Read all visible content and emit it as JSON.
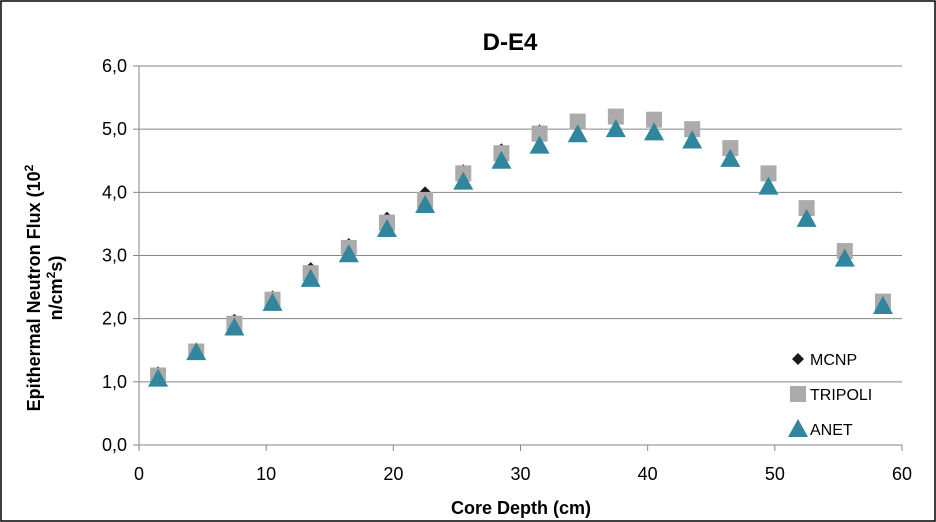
{
  "chart_data": {
    "type": "scatter",
    "title": "D-E4",
    "xlabel": "Core Depth (cm)",
    "ylabel_line1": "Epithermal Neutron Flux (10",
    "ylabel_sup1": "2",
    "ylabel_line2_a": "n/cm",
    "ylabel_sup2": "2",
    "ylabel_line2_b": "s)",
    "xlim": [
      0,
      60
    ],
    "ylim": [
      0,
      6
    ],
    "xticks": [
      0,
      10,
      20,
      30,
      40,
      50,
      60
    ],
    "yticks": [
      "0,0",
      "1,0",
      "2,0",
      "3,0",
      "4,0",
      "5,0",
      "6,0"
    ],
    "grid": "horizontal",
    "legend_position": "bottom-right",
    "x": [
      1.5,
      4.5,
      7.5,
      10.5,
      13.5,
      16.5,
      19.5,
      22.5,
      25.5,
      28.5,
      31.5,
      34.5,
      37.5,
      40.5,
      43.5,
      46.5,
      49.5,
      52.5,
      55.5,
      58.5
    ],
    "series": [
      {
        "name": "MCNP",
        "marker": "diamond",
        "color": "#1a1a1a",
        "values": [
          1.15,
          1.5,
          1.98,
          2.35,
          2.8,
          3.18,
          3.6,
          4.0,
          4.35,
          4.68,
          4.98,
          5.15,
          5.22,
          5.18,
          5.02,
          4.72,
          4.28,
          3.78,
          3.05,
          2.3
        ]
      },
      {
        "name": "TRIPOLI",
        "marker": "square",
        "color": "#ababab",
        "values": [
          1.1,
          1.48,
          1.92,
          2.3,
          2.72,
          3.12,
          3.52,
          3.88,
          4.3,
          4.62,
          4.93,
          5.12,
          5.2,
          5.15,
          5.0,
          4.7,
          4.3,
          3.75,
          3.07,
          2.27
        ]
      },
      {
        "name": "ANET",
        "marker": "triangle",
        "color": "#31859c",
        "values": [
          1.05,
          1.47,
          1.86,
          2.25,
          2.63,
          3.02,
          3.42,
          3.8,
          4.17,
          4.5,
          4.74,
          4.92,
          5.0,
          4.95,
          4.82,
          4.53,
          4.09,
          3.58,
          2.95,
          2.2
        ]
      }
    ]
  }
}
